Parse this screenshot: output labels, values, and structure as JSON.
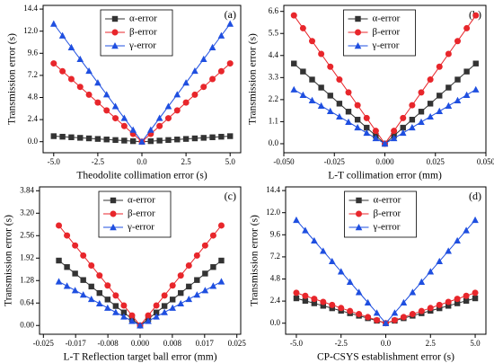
{
  "chart_data": [
    {
      "type": "line",
      "annotation": "(a)",
      "xlabel": "Theodolite  collimation error (s)",
      "ylabel": "Transmission error (s)",
      "legend": "upper center",
      "x": [
        -5,
        -4.5,
        -4,
        -3.5,
        -3,
        -2.5,
        -2,
        -1.5,
        -1,
        -0.5,
        0,
        0.5,
        1,
        1.5,
        2,
        2.5,
        3,
        3.5,
        4,
        4.5,
        5
      ],
      "series": [
        {
          "name": "α-error",
          "color": "#333333",
          "marker": "square",
          "values": [
            0.6,
            0.54,
            0.48,
            0.42,
            0.36,
            0.3,
            0.24,
            0.18,
            0.12,
            0.06,
            0,
            0.06,
            0.12,
            0.18,
            0.24,
            0.3,
            0.36,
            0.42,
            0.48,
            0.54,
            0.6
          ]
        },
        {
          "name": "β-error",
          "color": "#e8262b",
          "marker": "circle",
          "values": [
            8.5,
            7.65,
            6.8,
            5.95,
            5.1,
            4.25,
            3.4,
            2.55,
            1.7,
            0.85,
            0,
            0.85,
            1.7,
            2.55,
            3.4,
            4.25,
            5.1,
            5.95,
            6.8,
            7.65,
            8.5
          ]
        },
        {
          "name": "γ-error",
          "color": "#1f4fe0",
          "marker": "triangle",
          "values": [
            12.8,
            11.52,
            10.24,
            8.96,
            7.68,
            6.4,
            5.12,
            3.84,
            2.56,
            1.28,
            0,
            1.28,
            2.56,
            3.84,
            5.12,
            6.4,
            7.68,
            8.96,
            10.24,
            11.52,
            12.8
          ]
        }
      ],
      "xlim": [
        -5.6,
        5.6
      ],
      "ylim": [
        -1.2,
        14.8
      ],
      "xticks": [
        {
          "value": -5,
          "label": "-5.0"
        },
        {
          "value": -2.5,
          "label": "-2.5"
        },
        {
          "value": 0,
          "label": "0.0"
        },
        {
          "value": 2.5,
          "label": "2.5"
        },
        {
          "value": 5,
          "label": "5.0"
        }
      ],
      "yticks": [
        {
          "value": 0,
          "label": "0.0"
        },
        2.4,
        4.8,
        7.2,
        9.6,
        {
          "value": 12,
          "label": "12.0"
        },
        14.4
      ]
    },
    {
      "type": "line",
      "annotation": "(b)",
      "xlabel": "L-T collimation error (mm)",
      "ylabel": "Transmission error (s)",
      "legend": "upper center",
      "x": [
        -0.045,
        -0.0405,
        -0.036,
        -0.0315,
        -0.027,
        -0.0225,
        -0.018,
        -0.0135,
        -0.009,
        -0.0045,
        0,
        0.0045,
        0.009,
        0.0135,
        0.018,
        0.0225,
        0.027,
        0.0315,
        0.036,
        0.0405,
        0.045
      ],
      "series": [
        {
          "name": "α-error",
          "color": "#333333",
          "marker": "square",
          "values": [
            4,
            3.6,
            3.2,
            2.8,
            2.4,
            2,
            1.6,
            1.2,
            0.8,
            0.4,
            0,
            0.4,
            0.8,
            1.2,
            1.6,
            2,
            2.4,
            2.8,
            3.2,
            3.6,
            4
          ]
        },
        {
          "name": "β-error",
          "color": "#e8262b",
          "marker": "circle",
          "values": [
            6.4,
            5.76,
            5.12,
            4.48,
            3.84,
            3.2,
            2.56,
            1.92,
            1.28,
            0.64,
            0,
            0.64,
            1.28,
            1.92,
            2.56,
            3.2,
            3.84,
            4.48,
            5.12,
            5.76,
            6.4
          ]
        },
        {
          "name": "γ-error",
          "color": "#1f4fe0",
          "marker": "triangle",
          "values": [
            2.7,
            2.43,
            2.16,
            1.89,
            1.62,
            1.35,
            1.08,
            0.81,
            0.54,
            0.27,
            0,
            0.27,
            0.54,
            0.81,
            1.08,
            1.35,
            1.62,
            1.89,
            2.16,
            2.43,
            2.7
          ]
        }
      ],
      "xlim": [
        -0.05,
        0.05
      ],
      "ylim": [
        -0.45,
        6.9
      ],
      "xticks": [
        {
          "value": -0.05,
          "label": "-0.050"
        },
        {
          "value": -0.025,
          "label": "-0.025"
        },
        {
          "value": 0,
          "label": "0.000"
        },
        {
          "value": 0.025,
          "label": "0.025"
        },
        {
          "value": 0.05,
          "label": "0.050"
        }
      ],
      "yticks": [
        {
          "value": 0,
          "label": "0.0"
        },
        1.1,
        2.2,
        3.3,
        4.4,
        5.5,
        6.6
      ]
    },
    {
      "type": "line",
      "annotation": "(c)",
      "xlabel": "L-T Reflection target ball error (mm)",
      "ylabel": "Transmission error (s)",
      "legend": "upper center",
      "x": [
        -0.021,
        -0.0189,
        -0.0168,
        -0.0147,
        -0.0126,
        -0.0105,
        -0.0084,
        -0.0063,
        -0.0042,
        -0.0021,
        0,
        0.0021,
        0.0042,
        0.0063,
        0.0084,
        0.0105,
        0.0126,
        0.0147,
        0.0168,
        0.0189,
        0.021
      ],
      "series": [
        {
          "name": "α-error",
          "color": "#333333",
          "marker": "square",
          "values": [
            1.85,
            1.665,
            1.48,
            1.295,
            1.11,
            0.925,
            0.74,
            0.555,
            0.37,
            0.185,
            0,
            0.185,
            0.37,
            0.555,
            0.74,
            0.925,
            1.11,
            1.295,
            1.48,
            1.665,
            1.85
          ]
        },
        {
          "name": "β-error",
          "color": "#e8262b",
          "marker": "circle",
          "values": [
            2.85,
            2.565,
            2.28,
            1.995,
            1.71,
            1.425,
            1.14,
            0.855,
            0.57,
            0.285,
            0,
            0.285,
            0.57,
            0.855,
            1.14,
            1.425,
            1.71,
            1.995,
            2.28,
            2.565,
            2.85
          ]
        },
        {
          "name": "γ-error",
          "color": "#1f4fe0",
          "marker": "triangle",
          "values": [
            1.25,
            1.125,
            1,
            0.875,
            0.75,
            0.625,
            0.5,
            0.375,
            0.25,
            0.125,
            0,
            0.125,
            0.25,
            0.375,
            0.5,
            0.625,
            0.75,
            0.875,
            1,
            1.125,
            1.25
          ]
        }
      ],
      "xlim": [
        -0.026,
        0.026
      ],
      "ylim": [
        -0.25,
        3.95
      ],
      "xticks": [
        {
          "value": -0.025,
          "label": "-0.025"
        },
        {
          "value": -0.01667,
          "label": "-0.017"
        },
        {
          "value": -0.00833,
          "label": "-0.008"
        },
        {
          "value": 0,
          "label": "0.000"
        },
        {
          "value": 0.00833,
          "label": "0.008"
        },
        {
          "value": 0.01667,
          "label": "0.017"
        },
        {
          "value": 0.025,
          "label": "0.025"
        }
      ],
      "yticks": [
        {
          "value": 0,
          "label": "0.00"
        },
        0.64,
        1.28,
        1.92,
        2.56,
        {
          "value": 3.2,
          "label": "3.20"
        },
        3.84
      ]
    },
    {
      "type": "line",
      "annotation": "(d)",
      "xlabel": "CP-CSYS establishment error (s)",
      "ylabel": "Transmission error (s)",
      "legend": "upper center",
      "x": [
        -5,
        -4.5,
        -4,
        -3.5,
        -3,
        -2.5,
        -2,
        -1.5,
        -1,
        -0.5,
        0,
        0.5,
        1,
        1.5,
        2,
        2.5,
        3,
        3.5,
        4,
        4.5,
        5
      ],
      "series": [
        {
          "name": "α-error",
          "color": "#333333",
          "marker": "square",
          "values": [
            2.7,
            2.43,
            2.16,
            1.89,
            1.62,
            1.35,
            1.08,
            0.81,
            0.54,
            0.27,
            0,
            0.27,
            0.54,
            0.81,
            1.08,
            1.35,
            1.62,
            1.89,
            2.16,
            2.43,
            2.7
          ]
        },
        {
          "name": "β-error",
          "color": "#e8262b",
          "marker": "circle",
          "values": [
            3.3,
            2.97,
            2.64,
            2.31,
            1.98,
            1.65,
            1.32,
            0.99,
            0.66,
            0.33,
            0,
            0.33,
            0.66,
            0.99,
            1.32,
            1.65,
            1.98,
            2.31,
            2.64,
            2.97,
            3.3
          ]
        },
        {
          "name": "γ-error",
          "color": "#1f4fe0",
          "marker": "triangle",
          "values": [
            11.2,
            10.08,
            8.96,
            7.84,
            6.72,
            5.6,
            4.48,
            3.36,
            2.24,
            1.12,
            0,
            1.12,
            2.24,
            3.36,
            4.48,
            5.6,
            6.72,
            7.84,
            8.96,
            10.08,
            11.2
          ]
        }
      ],
      "xlim": [
        -5.6,
        5.6
      ],
      "ylim": [
        -1.2,
        14.8
      ],
      "xticks": [
        {
          "value": -5,
          "label": "-5.0"
        },
        {
          "value": -2.5,
          "label": "-2.5"
        },
        {
          "value": 0,
          "label": "0.0"
        },
        {
          "value": 2.5,
          "label": "2.5"
        },
        {
          "value": 5,
          "label": "5.0"
        }
      ],
      "yticks": [
        {
          "value": 0,
          "label": "0.0"
        },
        2.4,
        4.8,
        7.2,
        9.6,
        {
          "value": 12,
          "label": "12.0"
        },
        14.4
      ]
    }
  ]
}
